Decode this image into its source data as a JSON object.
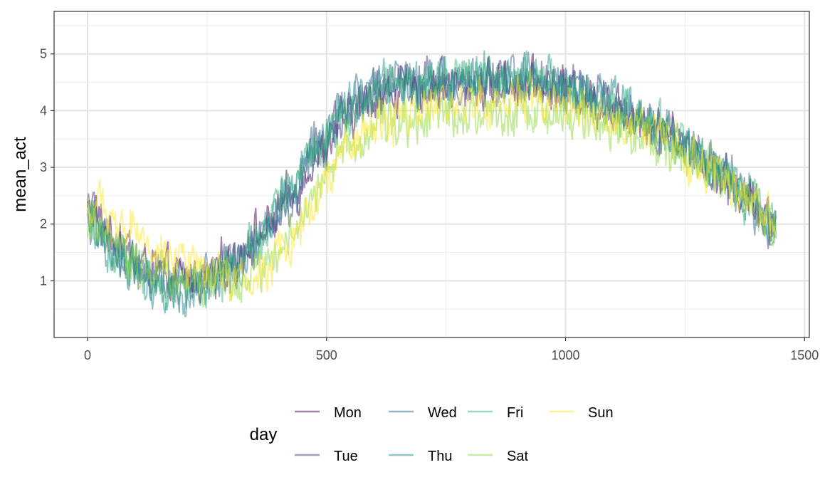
{
  "chart_data": {
    "type": "line",
    "title": "",
    "xlabel": "",
    "ylabel": "mean_act",
    "xlim": [
      -70,
      1510
    ],
    "ylim": [
      -0.0,
      5.75
    ],
    "x_ticks": [
      0,
      500,
      1000,
      1500
    ],
    "x_tick_labels": [
      "0",
      "500",
      "1000",
      "1500"
    ],
    "y_ticks": [
      1,
      2,
      3,
      4,
      5
    ],
    "y_tick_labels": [
      "1",
      "2",
      "3",
      "4",
      "5"
    ],
    "grid": true,
    "legend": {
      "title": "day",
      "position": "bottom",
      "ncol": 4
    },
    "x_range": [
      0,
      1440
    ],
    "series": [
      {
        "name": "Mon",
        "color": "#440154",
        "key_x": [
          0,
          60,
          120,
          180,
          240,
          300,
          360,
          420,
          480,
          540,
          600,
          660,
          720,
          780,
          840,
          900,
          960,
          1020,
          1080,
          1140,
          1200,
          1260,
          1320,
          1380,
          1440
        ],
        "key_y": [
          2.25,
          1.75,
          1.3,
          1.05,
          1.05,
          1.35,
          1.8,
          2.4,
          3.2,
          3.85,
          4.25,
          4.35,
          4.4,
          4.45,
          4.45,
          4.5,
          4.45,
          4.35,
          4.15,
          3.95,
          3.7,
          3.35,
          2.95,
          2.5,
          2.0
        ]
      },
      {
        "name": "Tue",
        "color": "#443983",
        "key_x": [
          0,
          60,
          120,
          180,
          240,
          300,
          360,
          420,
          480,
          540,
          600,
          660,
          720,
          780,
          840,
          900,
          960,
          1020,
          1080,
          1140,
          1200,
          1260,
          1320,
          1380,
          1440
        ],
        "key_y": [
          2.2,
          1.6,
          1.2,
          1.0,
          1.0,
          1.25,
          1.75,
          2.35,
          3.25,
          3.95,
          4.35,
          4.45,
          4.5,
          4.55,
          4.5,
          4.55,
          4.5,
          4.4,
          4.2,
          3.95,
          3.65,
          3.35,
          2.95,
          2.45,
          1.95
        ]
      },
      {
        "name": "Wed",
        "color": "#31688e",
        "key_x": [
          0,
          60,
          120,
          180,
          240,
          300,
          360,
          420,
          480,
          540,
          600,
          660,
          720,
          780,
          840,
          900,
          960,
          1020,
          1080,
          1140,
          1200,
          1260,
          1320,
          1380,
          1440
        ],
        "key_y": [
          2.1,
          1.5,
          1.1,
          0.9,
          0.95,
          1.2,
          1.75,
          2.45,
          3.35,
          4.0,
          4.4,
          4.5,
          4.5,
          4.6,
          4.55,
          4.6,
          4.5,
          4.4,
          4.2,
          3.95,
          3.7,
          3.35,
          2.95,
          2.45,
          1.95
        ]
      },
      {
        "name": "Thu",
        "color": "#21908d",
        "key_x": [
          0,
          60,
          120,
          180,
          240,
          300,
          360,
          420,
          480,
          540,
          600,
          660,
          720,
          780,
          840,
          900,
          960,
          1020,
          1080,
          1140,
          1200,
          1260,
          1320,
          1380,
          1440
        ],
        "key_y": [
          2.1,
          1.45,
          1.05,
          0.85,
          0.9,
          1.2,
          1.8,
          2.55,
          3.4,
          4.05,
          4.45,
          4.55,
          4.55,
          4.6,
          4.6,
          4.6,
          4.5,
          4.4,
          4.2,
          3.95,
          3.65,
          3.35,
          2.95,
          2.45,
          1.95
        ]
      },
      {
        "name": "Fri",
        "color": "#35b779",
        "key_x": [
          0,
          60,
          120,
          180,
          240,
          300,
          360,
          420,
          480,
          540,
          600,
          660,
          720,
          780,
          840,
          900,
          960,
          1020,
          1080,
          1140,
          1200,
          1260,
          1320,
          1380,
          1440
        ],
        "key_y": [
          2.0,
          1.45,
          1.1,
          0.9,
          0.9,
          1.15,
          1.7,
          2.6,
          3.5,
          4.0,
          4.3,
          4.4,
          4.45,
          4.55,
          4.5,
          4.55,
          4.45,
          4.3,
          4.1,
          3.9,
          3.65,
          3.3,
          2.9,
          2.45,
          1.95
        ]
      },
      {
        "name": "Sat",
        "color": "#8fd744",
        "key_x": [
          0,
          60,
          120,
          180,
          240,
          300,
          360,
          420,
          480,
          540,
          600,
          660,
          720,
          780,
          840,
          900,
          960,
          1020,
          1080,
          1140,
          1200,
          1260,
          1320,
          1380,
          1440
        ],
        "key_y": [
          2.0,
          1.55,
          1.3,
          1.1,
          1.0,
          0.95,
          1.15,
          1.75,
          2.6,
          3.3,
          3.7,
          3.85,
          3.95,
          4.0,
          3.95,
          3.95,
          3.9,
          3.85,
          3.75,
          3.6,
          3.4,
          3.15,
          2.8,
          2.4,
          1.95
        ]
      },
      {
        "name": "Sun",
        "color": "#fde725",
        "key_x": [
          0,
          60,
          120,
          180,
          240,
          300,
          360,
          420,
          480,
          540,
          600,
          660,
          720,
          780,
          840,
          900,
          960,
          1020,
          1080,
          1140,
          1200,
          1260,
          1320,
          1380,
          1440
        ],
        "key_y": [
          2.3,
          2.0,
          1.75,
          1.45,
          1.2,
          1.05,
          1.15,
          1.6,
          2.45,
          3.2,
          3.7,
          3.9,
          4.05,
          4.15,
          4.15,
          4.2,
          4.15,
          4.05,
          3.9,
          3.7,
          3.5,
          3.2,
          2.85,
          2.45,
          2.0
        ]
      }
    ]
  }
}
